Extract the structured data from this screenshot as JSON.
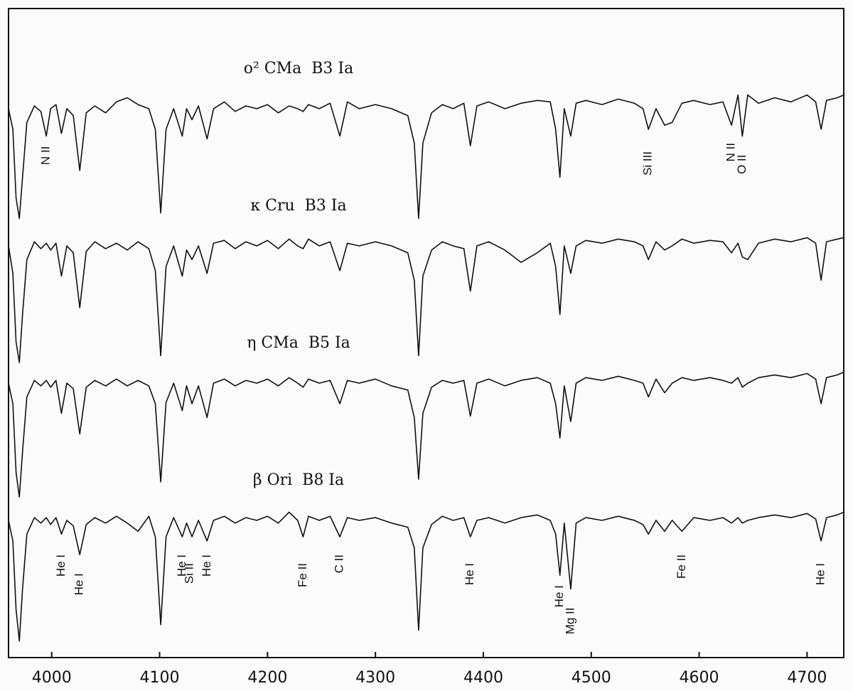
{
  "chart_data": {
    "type": "line",
    "x": [
      3960,
      3964,
      3967,
      3970,
      3973,
      3977,
      3984,
      3990,
      3995,
      3999,
      4004,
      4009,
      4014,
      4020,
      4026,
      4032,
      4040,
      4050,
      4060,
      4070,
      4080,
      4090,
      4096,
      4101,
      4106,
      4113,
      4121,
      4125,
      4130,
      4136,
      4144,
      4150,
      4160,
      4170,
      4180,
      4190,
      4200,
      4210,
      4220,
      4228,
      4233,
      4238,
      4248,
      4258,
      4267,
      4274,
      4285,
      4300,
      4315,
      4330,
      4336,
      4340,
      4344,
      4352,
      4362,
      4372,
      4382,
      4388,
      4394,
      4405,
      4420,
      4435,
      4450,
      4462,
      4467,
      4471,
      4475,
      4481,
      4486,
      4495,
      4510,
      4525,
      4540,
      4548,
      4553,
      4560,
      4568,
      4575,
      4584,
      4595,
      4610,
      4622,
      4630,
      4636,
      4640,
      4645,
      4655,
      4670,
      4685,
      4700,
      4708,
      4713,
      4718,
      4728,
      4734
    ],
    "xlim": [
      3960,
      4734
    ],
    "xticks": [
      4000,
      4100,
      4200,
      4300,
      4400,
      4500,
      4600,
      4700
    ],
    "ylim": [
      -1.0,
      3.73
    ],
    "series": [
      {
        "name": "o² CMa  B3 Ia",
        "color": "#111111",
        "values": [
          3.0,
          2.85,
          2.35,
          2.2,
          2.5,
          2.9,
          3.02,
          2.98,
          2.8,
          3.0,
          3.03,
          2.82,
          3.0,
          2.95,
          2.55,
          2.97,
          3.02,
          2.97,
          3.05,
          3.08,
          3.03,
          3.0,
          2.85,
          2.24,
          2.85,
          3.0,
          2.8,
          3.0,
          2.92,
          3.02,
          2.78,
          3.0,
          3.05,
          2.98,
          3.02,
          3.0,
          3.03,
          2.97,
          3.02,
          3.0,
          2.98,
          3.03,
          3.0,
          3.04,
          2.8,
          3.05,
          3.0,
          3.03,
          3.0,
          2.95,
          2.75,
          2.2,
          2.75,
          2.97,
          3.03,
          3.0,
          3.04,
          2.73,
          3.02,
          3.05,
          3.0,
          3.04,
          3.06,
          3.05,
          2.85,
          2.5,
          3.0,
          2.8,
          3.04,
          3.06,
          3.03,
          3.07,
          3.04,
          3.0,
          2.85,
          3.0,
          2.88,
          2.9,
          3.04,
          3.06,
          3.03,
          3.05,
          2.88,
          3.1,
          2.8,
          3.1,
          3.04,
          3.08,
          3.05,
          3.1,
          3.05,
          2.85,
          3.06,
          3.08,
          3.1
        ],
        "line_ids": [
          {
            "label": "N II",
            "x": 3995
          },
          {
            "label": "Si III",
            "x": 4553
          },
          {
            "label": "N II",
            "x": 4630
          },
          {
            "label": "O II",
            "x": 4640
          }
        ]
      },
      {
        "name": "κ Cru  B3 Ia",
        "color": "#111111",
        "values": [
          2.0,
          1.8,
          1.3,
          1.15,
          1.5,
          1.9,
          2.03,
          1.98,
          2.02,
          1.97,
          2.02,
          1.78,
          2.0,
          1.95,
          1.55,
          1.96,
          2.03,
          1.98,
          2.02,
          1.97,
          2.03,
          1.98,
          1.82,
          1.2,
          1.85,
          2.0,
          1.78,
          1.97,
          1.9,
          2.0,
          1.8,
          2.02,
          2.04,
          1.98,
          2.03,
          2.0,
          2.04,
          1.98,
          2.05,
          2.0,
          1.98,
          2.05,
          2.0,
          2.03,
          1.82,
          2.02,
          2.0,
          2.03,
          2.0,
          1.95,
          1.75,
          1.2,
          1.78,
          1.97,
          2.03,
          2.0,
          1.98,
          1.67,
          2.0,
          2.03,
          1.97,
          1.88,
          1.95,
          2.02,
          1.85,
          1.5,
          2.0,
          1.8,
          2.0,
          2.04,
          2.02,
          2.05,
          2.03,
          2.0,
          1.9,
          2.03,
          1.97,
          2.0,
          2.05,
          2.02,
          2.04,
          2.03,
          1.95,
          2.02,
          1.92,
          1.9,
          2.02,
          2.05,
          2.03,
          2.06,
          2.02,
          1.75,
          2.03,
          2.05,
          2.06
        ]
      },
      {
        "name": "η CMa  B5 Ia",
        "color": "#111111",
        "values": [
          1.0,
          0.85,
          0.35,
          0.17,
          0.5,
          0.9,
          1.02,
          0.98,
          1.02,
          0.97,
          1.02,
          0.78,
          1.0,
          0.96,
          0.63,
          0.97,
          1.02,
          0.98,
          1.03,
          0.98,
          1.02,
          0.98,
          0.85,
          0.28,
          0.86,
          1.0,
          0.8,
          0.98,
          0.85,
          0.98,
          0.75,
          1.0,
          1.03,
          0.98,
          1.02,
          1.0,
          1.03,
          0.98,
          1.04,
          1.0,
          0.97,
          1.03,
          1.0,
          1.02,
          0.85,
          1.02,
          1.0,
          1.03,
          0.98,
          0.95,
          0.75,
          0.3,
          0.78,
          0.97,
          1.02,
          1.0,
          1.02,
          0.76,
          1.0,
          1.03,
          0.98,
          1.02,
          1.04,
          1.0,
          0.85,
          0.6,
          0.98,
          0.72,
          1.0,
          1.04,
          1.02,
          1.05,
          1.02,
          1.0,
          0.9,
          1.03,
          0.93,
          1.0,
          1.04,
          1.02,
          1.04,
          1.02,
          1.0,
          1.04,
          0.97,
          1.0,
          1.04,
          1.06,
          1.04,
          1.07,
          1.03,
          0.85,
          1.04,
          1.06,
          1.08
        ]
      },
      {
        "name": "β Ori  B8 Ia",
        "color": "#111111",
        "values": [
          0.0,
          -0.15,
          -0.65,
          -0.88,
          -0.5,
          -0.1,
          0.02,
          -0.02,
          0.02,
          -0.03,
          0.02,
          -0.1,
          0.0,
          -0.04,
          -0.25,
          -0.03,
          0.02,
          -0.02,
          0.03,
          -0.02,
          -0.08,
          0.03,
          -0.12,
          -0.76,
          -0.12,
          0.02,
          -0.12,
          -0.02,
          -0.12,
          0.0,
          -0.15,
          0.0,
          0.03,
          -0.02,
          0.02,
          0.0,
          0.03,
          -0.02,
          0.06,
          0.0,
          -0.12,
          0.03,
          0.0,
          0.03,
          -0.12,
          0.02,
          0.0,
          0.02,
          -0.02,
          -0.05,
          -0.2,
          -0.8,
          -0.2,
          -0.03,
          0.03,
          0.0,
          0.02,
          -0.12,
          0.0,
          0.02,
          -0.02,
          0.02,
          0.04,
          0.0,
          -0.1,
          -0.4,
          -0.02,
          -0.5,
          -0.02,
          0.02,
          0.0,
          0.03,
          0.0,
          -0.03,
          -0.1,
          0.0,
          -0.08,
          0.0,
          -0.08,
          0.02,
          0.0,
          0.02,
          -0.02,
          0.02,
          -0.02,
          0.0,
          0.02,
          0.04,
          0.02,
          0.05,
          0.01,
          -0.15,
          0.02,
          0.04,
          0.06
        ],
        "line_ids": [
          {
            "label": "He I",
            "x": 4009
          },
          {
            "label": "He I",
            "x": 4026
          },
          {
            "label": "He I",
            "x": 4121
          },
          {
            "label": "Si II",
            "x": 4128
          },
          {
            "label": "He I",
            "x": 4144
          },
          {
            "label": "Fe II",
            "x": 4233
          },
          {
            "label": "C II",
            "x": 4267
          },
          {
            "label": "He I",
            "x": 4388
          },
          {
            "label": "He I",
            "x": 4471
          },
          {
            "label": "Mg II",
            "x": 4481
          },
          {
            "label": "Fe II",
            "x": 4584
          },
          {
            "label": "He I",
            "x": 4713
          }
        ]
      }
    ]
  }
}
